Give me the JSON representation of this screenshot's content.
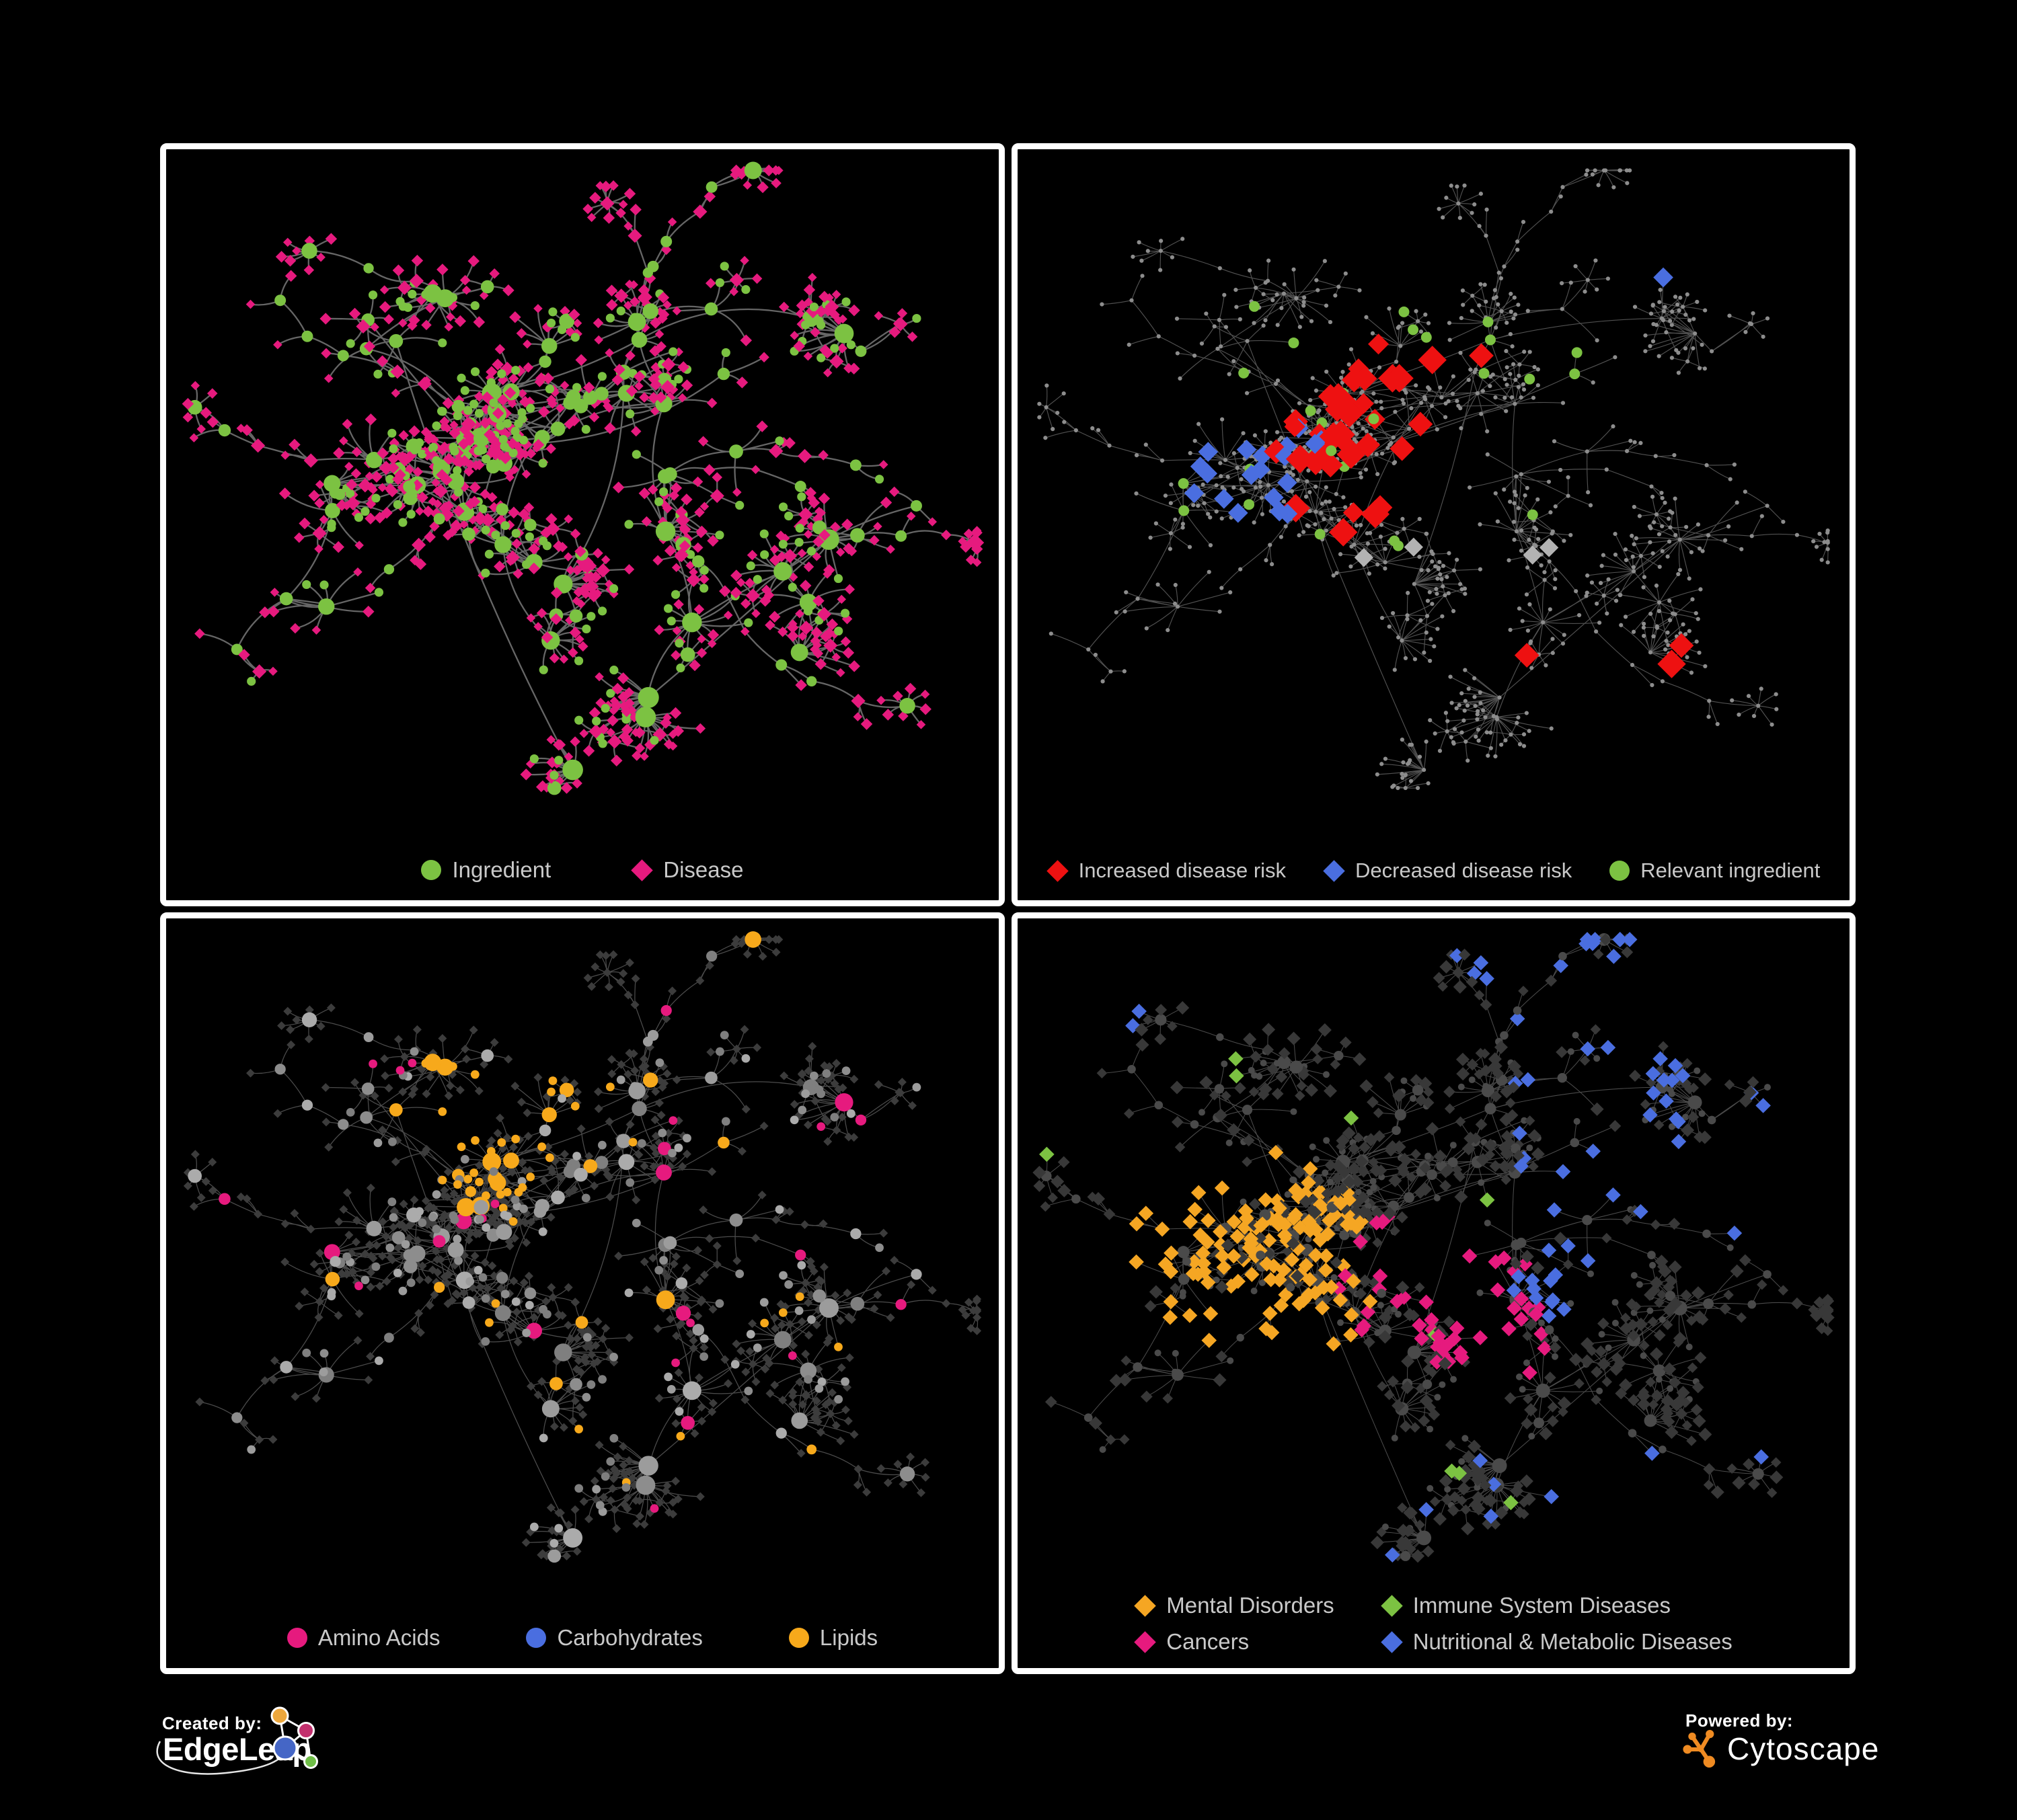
{
  "colors": {
    "background": "#000000",
    "panel_border": "#ffffff",
    "legend_text": "#c9c9c9",
    "edge_gray": "#6f6f6f",
    "node_gray": "#8d8d8d",
    "node_dark": "#3a3a3a",
    "ingredient_green": "#7cc242",
    "disease_pink": "#e61a7e",
    "risk_red": "#ee1111",
    "risk_blue": "#4a6ee0",
    "neutral_diamond_gray": "#b3b3b3",
    "lipid_yellow": "#f7a91b",
    "mental_amber": "#f5a623",
    "cytoscape_orange": "#ef8b22",
    "edgeleap_orange": "#eda73c",
    "edgeleap_magenta": "#c22f6d",
    "edgeleap_blue": "#4566c6",
    "edgeleap_green": "#6fbe47",
    "white": "#ffffff"
  },
  "panels": [
    {
      "name": "ingredient-disease-network",
      "legend": [
        {
          "label": "Ingredient",
          "marker": "circle",
          "color": "#7cc242"
        },
        {
          "label": "Disease",
          "marker": "diamond",
          "color": "#e61a7e"
        }
      ]
    },
    {
      "name": "disease-risk-network",
      "legend": [
        {
          "label": "Increased disease risk",
          "marker": "diamond",
          "color": "#ee1111"
        },
        {
          "label": "Decreased disease risk",
          "marker": "diamond",
          "color": "#4a6ee0"
        },
        {
          "label": "Relevant ingredient",
          "marker": "circle",
          "color": "#7cc242"
        }
      ]
    },
    {
      "name": "nutrient-class-network",
      "legend": [
        {
          "label": "Amino Acids",
          "marker": "circle",
          "color": "#e61a7e"
        },
        {
          "label": "Carbohydrates",
          "marker": "circle",
          "color": "#4a6ee0"
        },
        {
          "label": "Lipids",
          "marker": "circle",
          "color": "#f7a91b"
        }
      ]
    },
    {
      "name": "disease-category-network",
      "legend": [
        {
          "label": "Mental Disorders",
          "marker": "diamond",
          "color": "#f5a623"
        },
        {
          "label": "Immune System Diseases",
          "marker": "diamond",
          "color": "#7cc242"
        },
        {
          "label": "Cancers",
          "marker": "diamond",
          "color": "#e61a7e"
        },
        {
          "label": "Nutritional & Metabolic Diseases",
          "marker": "diamond",
          "color": "#4a6ee0"
        }
      ]
    }
  ],
  "footer": {
    "created_by_label": "Created by:",
    "created_by_brand": "EdgeLeap",
    "powered_by_label": "Powered by:",
    "powered_by_brand": "Cytoscape"
  }
}
